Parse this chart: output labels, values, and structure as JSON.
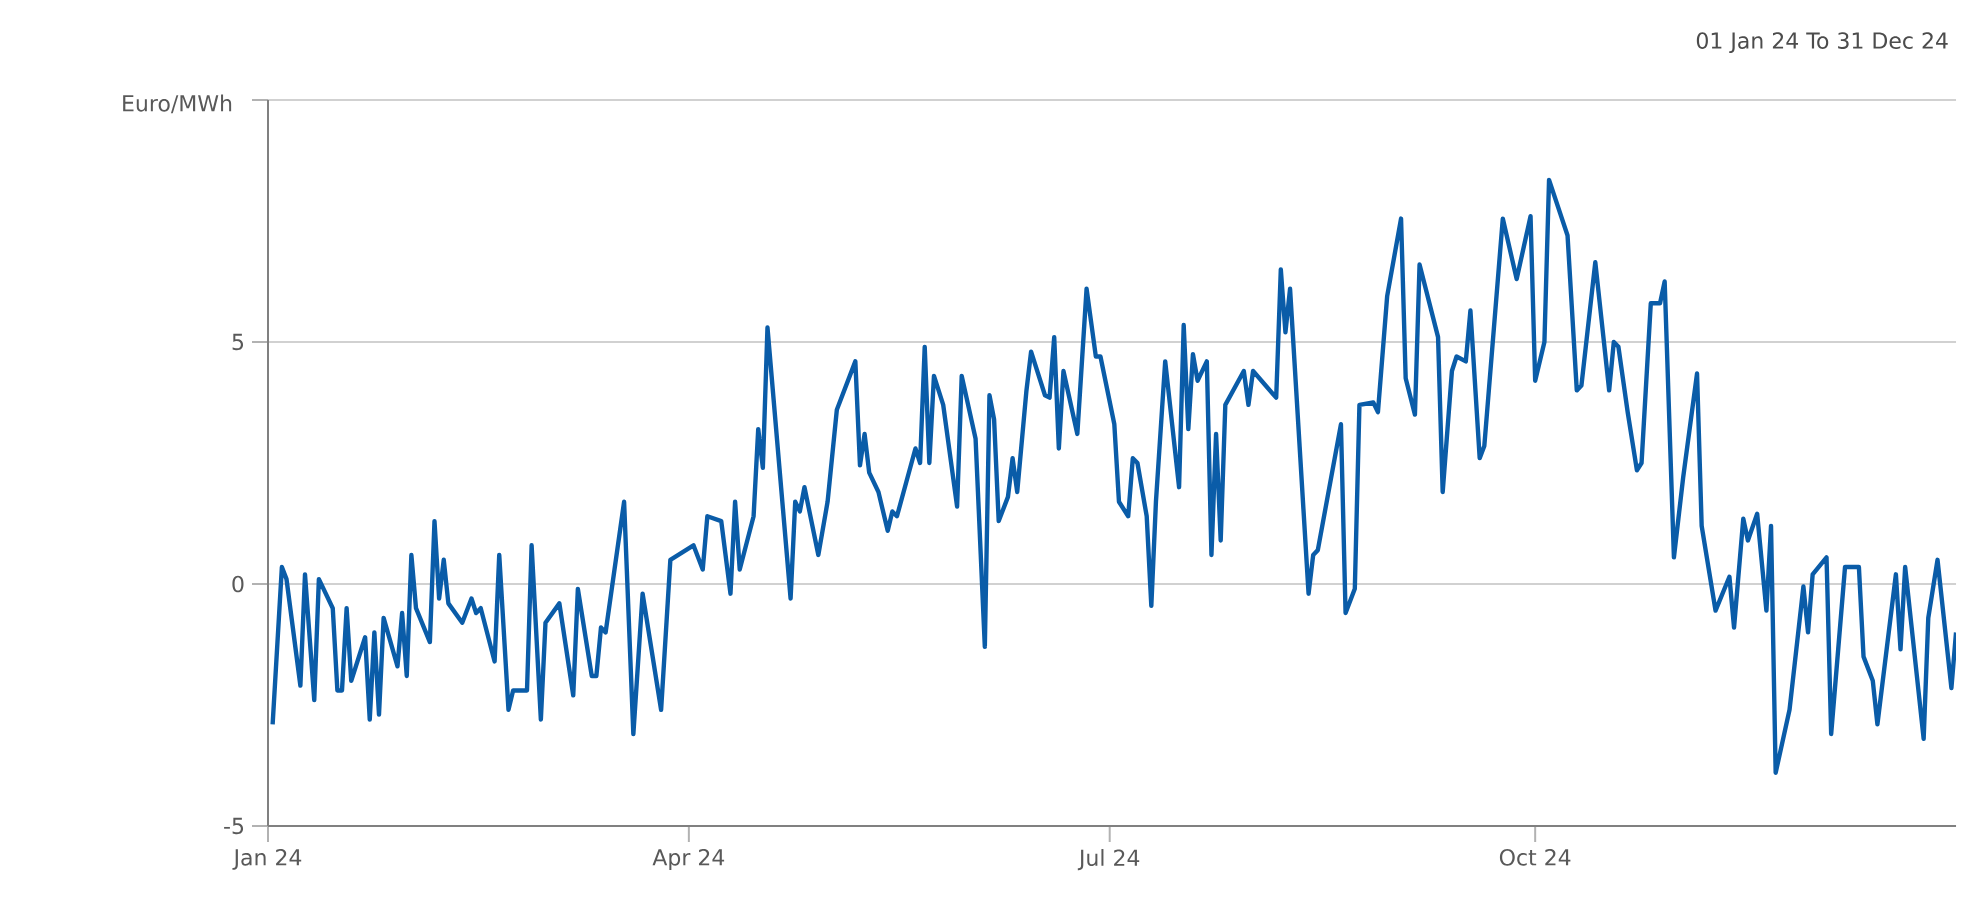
{
  "chart_data": {
    "type": "line",
    "title": "01 Jan 24 To 31 Dec 24",
    "ylabel": "Euro/MWh",
    "xlim": [
      "2024-01-01",
      "2024-12-31"
    ],
    "xticks": [
      {
        "value": "2024-01-01",
        "label": "Jan 24"
      },
      {
        "value": "2024-04-01",
        "label": "Apr 24"
      },
      {
        "value": "2024-07-01",
        "label": "Jul 24"
      },
      {
        "value": "2024-10-01",
        "label": "Oct 24"
      }
    ],
    "ylim": [
      -5,
      10
    ],
    "yticks": [
      -5,
      0,
      5,
      {
        "value": 10,
        "label": null
      }
    ],
    "grid": "y",
    "marker": "none",
    "line_style": "solid",
    "x": [
      "2024-01-02",
      "2024-01-04",
      "2024-01-05",
      "2024-01-08",
      "2024-01-09",
      "2024-01-11",
      "2024-01-12",
      "2024-01-15",
      "2024-01-16",
      "2024-01-17",
      "2024-01-18",
      "2024-01-19",
      "2024-01-22",
      "2024-01-23",
      "2024-01-24",
      "2024-01-25",
      "2024-01-26",
      "2024-01-29",
      "2024-01-30",
      "2024-01-31",
      "2024-02-01",
      "2024-02-02",
      "2024-02-05",
      "2024-02-06",
      "2024-02-07",
      "2024-02-08",
      "2024-02-09",
      "2024-02-12",
      "2024-02-14",
      "2024-02-15",
      "2024-02-16",
      "2024-02-19",
      "2024-02-20",
      "2024-02-22",
      "2024-02-23",
      "2024-02-26",
      "2024-02-27",
      "2024-02-29",
      "2024-03-01",
      "2024-03-04",
      "2024-03-07",
      "2024-03-08",
      "2024-03-11",
      "2024-03-12",
      "2024-03-13",
      "2024-03-14",
      "2024-03-18",
      "2024-03-20",
      "2024-03-22",
      "2024-03-26",
      "2024-03-28",
      "2024-04-02",
      "2024-04-04",
      "2024-04-05",
      "2024-04-08",
      "2024-04-10",
      "2024-04-11",
      "2024-04-12",
      "2024-04-15",
      "2024-04-16",
      "2024-04-17",
      "2024-04-18",
      "2024-04-23",
      "2024-04-24",
      "2024-04-25",
      "2024-04-26",
      "2024-04-29",
      "2024-05-01",
      "2024-05-03",
      "2024-05-07",
      "2024-05-08",
      "2024-05-09",
      "2024-05-10",
      "2024-05-12",
      "2024-05-14",
      "2024-05-15",
      "2024-05-16",
      "2024-05-20",
      "2024-05-21",
      "2024-05-22",
      "2024-05-23",
      "2024-05-24",
      "2024-05-26",
      "2024-05-29",
      "2024-05-30",
      "2024-06-02",
      "2024-06-04",
      "2024-06-05",
      "2024-06-06",
      "2024-06-07",
      "2024-06-09",
      "2024-06-10",
      "2024-06-11",
      "2024-06-13",
      "2024-06-14",
      "2024-06-17",
      "2024-06-18",
      "2024-06-19",
      "2024-06-20",
      "2024-06-21",
      "2024-06-24",
      "2024-06-26",
      "2024-06-28",
      "2024-06-29",
      "2024-07-02",
      "2024-07-03",
      "2024-07-05",
      "2024-07-06",
      "2024-07-07",
      "2024-07-09",
      "2024-07-10",
      "2024-07-11",
      "2024-07-13",
      "2024-07-16",
      "2024-07-17",
      "2024-07-18",
      "2024-07-19",
      "2024-07-20",
      "2024-07-22",
      "2024-07-23",
      "2024-07-24",
      "2024-07-25",
      "2024-07-26",
      "2024-07-30",
      "2024-07-31",
      "2024-08-01",
      "2024-08-06",
      "2024-08-07",
      "2024-08-08",
      "2024-08-09",
      "2024-08-13",
      "2024-08-14",
      "2024-08-15",
      "2024-08-20",
      "2024-08-21",
      "2024-08-23",
      "2024-08-24",
      "2024-08-27",
      "2024-08-28",
      "2024-08-30",
      "2024-09-02",
      "2024-09-03",
      "2024-09-05",
      "2024-09-06",
      "2024-09-10",
      "2024-09-11",
      "2024-09-13",
      "2024-09-14",
      "2024-09-16",
      "2024-09-17",
      "2024-09-19",
      "2024-09-20",
      "2024-09-24",
      "2024-09-27",
      "2024-09-30",
      "2024-10-01",
      "2024-10-03",
      "2024-10-04",
      "2024-10-08",
      "2024-10-10",
      "2024-10-11",
      "2024-10-14",
      "2024-10-17",
      "2024-10-18",
      "2024-10-19",
      "2024-10-21",
      "2024-10-23",
      "2024-10-24",
      "2024-10-26",
      "2024-10-28",
      "2024-10-29",
      "2024-10-31",
      "2024-11-02",
      "2024-11-05",
      "2024-11-06",
      "2024-11-09",
      "2024-11-12",
      "2024-11-13",
      "2024-11-15",
      "2024-11-16",
      "2024-11-18",
      "2024-11-20",
      "2024-11-21",
      "2024-11-22",
      "2024-11-25",
      "2024-11-28",
      "2024-11-29",
      "2024-11-30",
      "2024-12-03",
      "2024-12-04",
      "2024-12-07",
      "2024-12-10",
      "2024-12-11",
      "2024-12-13",
      "2024-12-14",
      "2024-12-18",
      "2024-12-19",
      "2024-12-20",
      "2024-12-24",
      "2024-12-25",
      "2024-12-27",
      "2024-12-30",
      "2024-12-31"
    ],
    "series": [
      {
        "color": "#0a5ca8",
        "values": [
          -2.9,
          0.35,
          0.1,
          -2.1,
          0.2,
          -2.4,
          0.1,
          -0.5,
          -2.2,
          -2.2,
          -0.5,
          -2.0,
          -1.1,
          -2.8,
          -1.0,
          -2.7,
          -0.7,
          -1.7,
          -0.6,
          -1.9,
          0.6,
          -0.5,
          -1.2,
          1.3,
          -0.3,
          0.5,
          -0.4,
          -0.8,
          -0.3,
          -0.6,
          -0.5,
          -1.6,
          0.6,
          -2.6,
          -2.2,
          -2.2,
          0.8,
          -2.8,
          -0.8,
          -0.4,
          -2.3,
          -0.1,
          -1.9,
          -1.9,
          -0.9,
          -1.0,
          1.7,
          -3.1,
          -0.2,
          -2.6,
          0.5,
          0.8,
          0.3,
          1.4,
          1.3,
          -0.2,
          1.7,
          0.3,
          1.4,
          3.2,
          2.4,
          5.3,
          -0.3,
          1.7,
          1.5,
          2.0,
          0.6,
          1.7,
          3.6,
          4.6,
          2.45,
          3.1,
          2.3,
          1.9,
          1.1,
          1.5,
          1.4,
          2.8,
          2.5,
          4.9,
          2.5,
          4.3,
          3.7,
          1.6,
          4.3,
          3.0,
          -1.3,
          3.9,
          3.4,
          1.3,
          1.8,
          2.6,
          1.9,
          4.0,
          4.8,
          3.9,
          3.85,
          5.1,
          2.8,
          4.4,
          3.1,
          6.1,
          4.7,
          4.7,
          3.3,
          1.7,
          1.4,
          2.6,
          2.5,
          1.4,
          -0.45,
          1.7,
          4.6,
          2.0,
          5.35,
          3.2,
          4.75,
          4.2,
          4.6,
          0.6,
          3.1,
          0.9,
          3.7,
          4.4,
          3.7,
          4.4,
          3.85,
          6.5,
          5.2,
          6.1,
          -0.2,
          0.6,
          0.7,
          3.3,
          -0.6,
          -0.1,
          3.7,
          3.75,
          3.55,
          5.95,
          7.55,
          4.25,
          3.5,
          6.6,
          5.1,
          1.9,
          4.4,
          4.7,
          4.6,
          5.65,
          2.6,
          2.85,
          7.55,
          6.3,
          7.6,
          4.2,
          5.0,
          8.35,
          7.2,
          4.0,
          4.1,
          6.65,
          4.0,
          5.0,
          4.9,
          3.55,
          2.35,
          2.5,
          5.8,
          5.8,
          6.25,
          0.55,
          2.2,
          4.35,
          1.2,
          -0.55,
          0.15,
          -0.9,
          1.35,
          0.9,
          1.45,
          -0.55,
          1.2,
          -3.9,
          -2.6,
          -0.05,
          -1.0,
          0.2,
          0.55,
          -3.1,
          0.35,
          0.35,
          -1.5,
          -2.0,
          -2.9,
          0.2,
          -1.35,
          0.35,
          -3.2,
          -0.7,
          0.5,
          -2.15,
          -1.0
        ]
      }
    ]
  }
}
